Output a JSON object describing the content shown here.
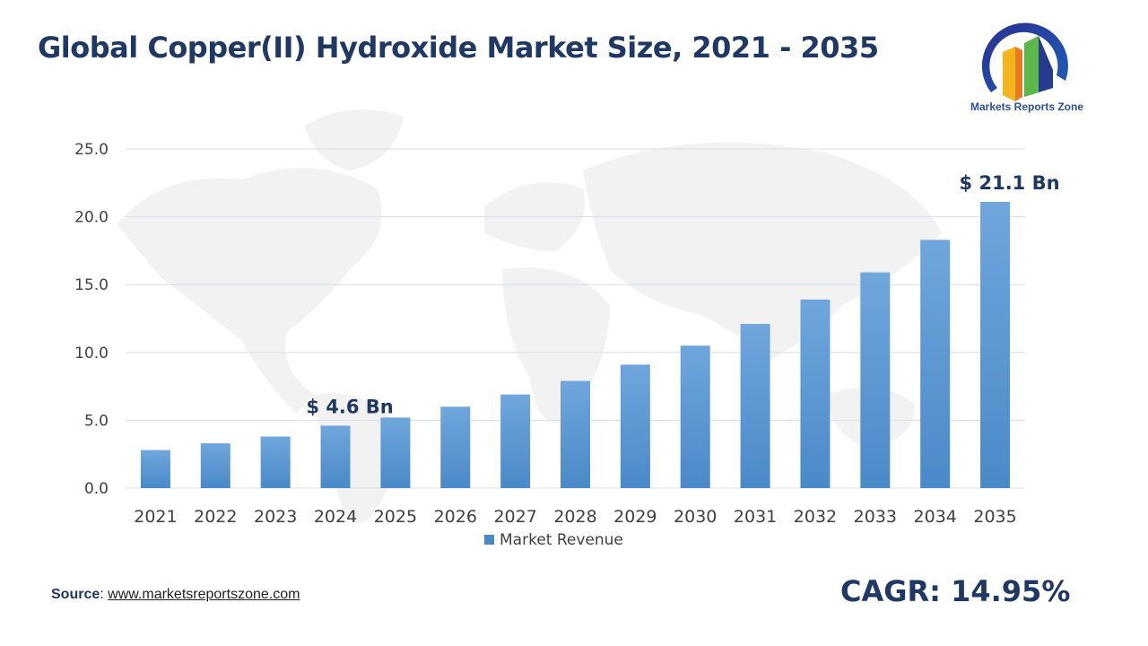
{
  "title": "Global Copper(II) Hydroxide Market Size, 2021 - 2035",
  "logo": {
    "text": "Markets Reports Zone"
  },
  "source": {
    "label": "Source",
    "separator": ": ",
    "url_text": "www.marketsreportszone.com"
  },
  "cagr": "CAGR: 14.95%",
  "chart_data": {
    "type": "bar",
    "categories": [
      "2021",
      "2022",
      "2023",
      "2024",
      "2025",
      "2026",
      "2027",
      "2028",
      "2029",
      "2030",
      "2031",
      "2032",
      "2033",
      "2034",
      "2035"
    ],
    "series": [
      {
        "name": "Market Revenue",
        "values": [
          2.8,
          3.3,
          3.8,
          4.6,
          5.2,
          6.0,
          6.9,
          7.9,
          9.1,
          10.5,
          12.1,
          13.9,
          15.9,
          18.3,
          21.1
        ]
      }
    ],
    "yticks": [
      "0.0",
      "5.0",
      "10.0",
      "15.0",
      "20.0",
      "25.0"
    ],
    "ylim": [
      0,
      25
    ],
    "grid": true,
    "legend": "bottom",
    "annotations": [
      {
        "category": "2024",
        "text": "$ 4.6 Bn"
      },
      {
        "category": "2035",
        "text": "$ 21.1 Bn"
      }
    ],
    "colors": {
      "bar_top": "#6fa6dc",
      "bar_bottom": "#4a89c8",
      "grid": "#d9dde6",
      "annotation": "#1f3864",
      "tick": "#404040"
    }
  }
}
